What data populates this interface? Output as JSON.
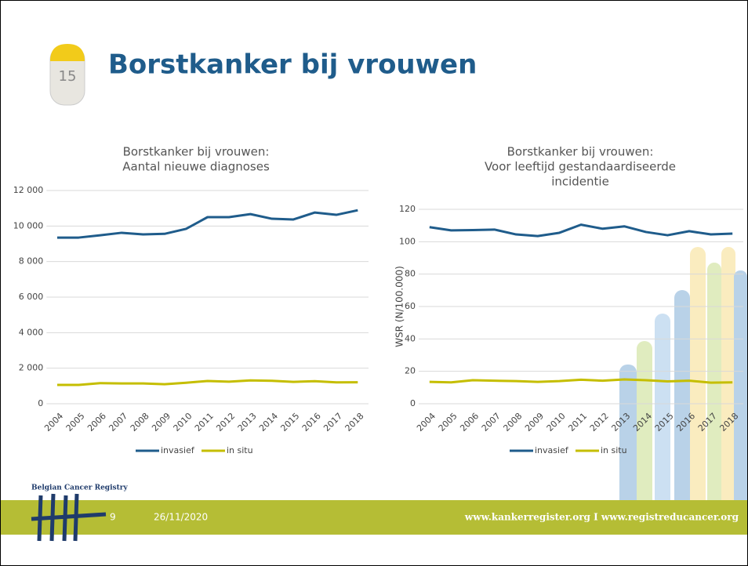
{
  "slide": {
    "title": "Borstkanker bij vrouwen",
    "milestone": "15",
    "logo": "Belgian Cancer Registry",
    "page_number": "9",
    "date": "26/11/2020",
    "footer_url": "www.kankerregister.org I www.registreducancer.org"
  },
  "chart_data": [
    {
      "type": "line",
      "title": [
        "Borstkanker bij vrouwen:",
        "Aantal nieuwe diagnoses"
      ],
      "categories": [
        "2004",
        "2005",
        "2006",
        "2007",
        "2008",
        "2009",
        "2010",
        "2011",
        "2012",
        "2013",
        "2014",
        "2015",
        "2016",
        "2017",
        "2018"
      ],
      "series": [
        {
          "name": "invasief",
          "color": "#1f5c8b",
          "values": [
            9350,
            9350,
            9480,
            9620,
            9530,
            9560,
            9840,
            10500,
            10500,
            10670,
            10410,
            10370,
            10760,
            10630,
            10890
          ]
        },
        {
          "name": "in situ",
          "color": "#c5be00",
          "values": [
            1060,
            1060,
            1160,
            1140,
            1140,
            1100,
            1180,
            1280,
            1240,
            1310,
            1290,
            1230,
            1270,
            1200,
            1210
          ]
        }
      ],
      "ylim": [
        0,
        12000
      ],
      "yticks": [
        0,
        {
          "value": 2000,
          "label": "2 000"
        },
        {
          "value": 4000,
          "label": "4 000"
        },
        {
          "value": 6000,
          "label": "6 000"
        },
        {
          "value": 8000,
          "label": "8 000"
        },
        {
          "value": 10000,
          "label": "10 000"
        },
        {
          "value": 12000,
          "label": "12 000"
        }
      ],
      "grid": true,
      "legend": "bottom"
    },
    {
      "type": "line",
      "title": [
        "Borstkanker bij vrouwen:",
        "Voor leeftijd gestandaardiseerde",
        "incidentie"
      ],
      "y_label": "WSR (N/100.000)",
      "categories": [
        "2004",
        "2005",
        "2006",
        "2007",
        "2008",
        "2009",
        "2010",
        "2011",
        "2012",
        "2013",
        "2014",
        "2015",
        "2016",
        "2017",
        "2018"
      ],
      "series": [
        {
          "name": "invasief",
          "color": "#1f5c8b",
          "values": [
            109,
            107,
            107.2,
            107.5,
            104.5,
            103.5,
            105.5,
            110.5,
            108,
            109.5,
            106,
            104,
            106.5,
            104.5,
            105
          ]
        },
        {
          "name": "in situ",
          "color": "#c5be00",
          "values": [
            13.5,
            13.2,
            14.5,
            14.2,
            14,
            13.5,
            14,
            14.8,
            14.2,
            15,
            14.5,
            13.8,
            14.2,
            13,
            13.2
          ]
        }
      ],
      "ylim": [
        0,
        120
      ],
      "yticks": [
        0,
        20,
        40,
        60,
        80,
        100,
        120
      ],
      "grid": true,
      "legend": "bottom"
    }
  ]
}
